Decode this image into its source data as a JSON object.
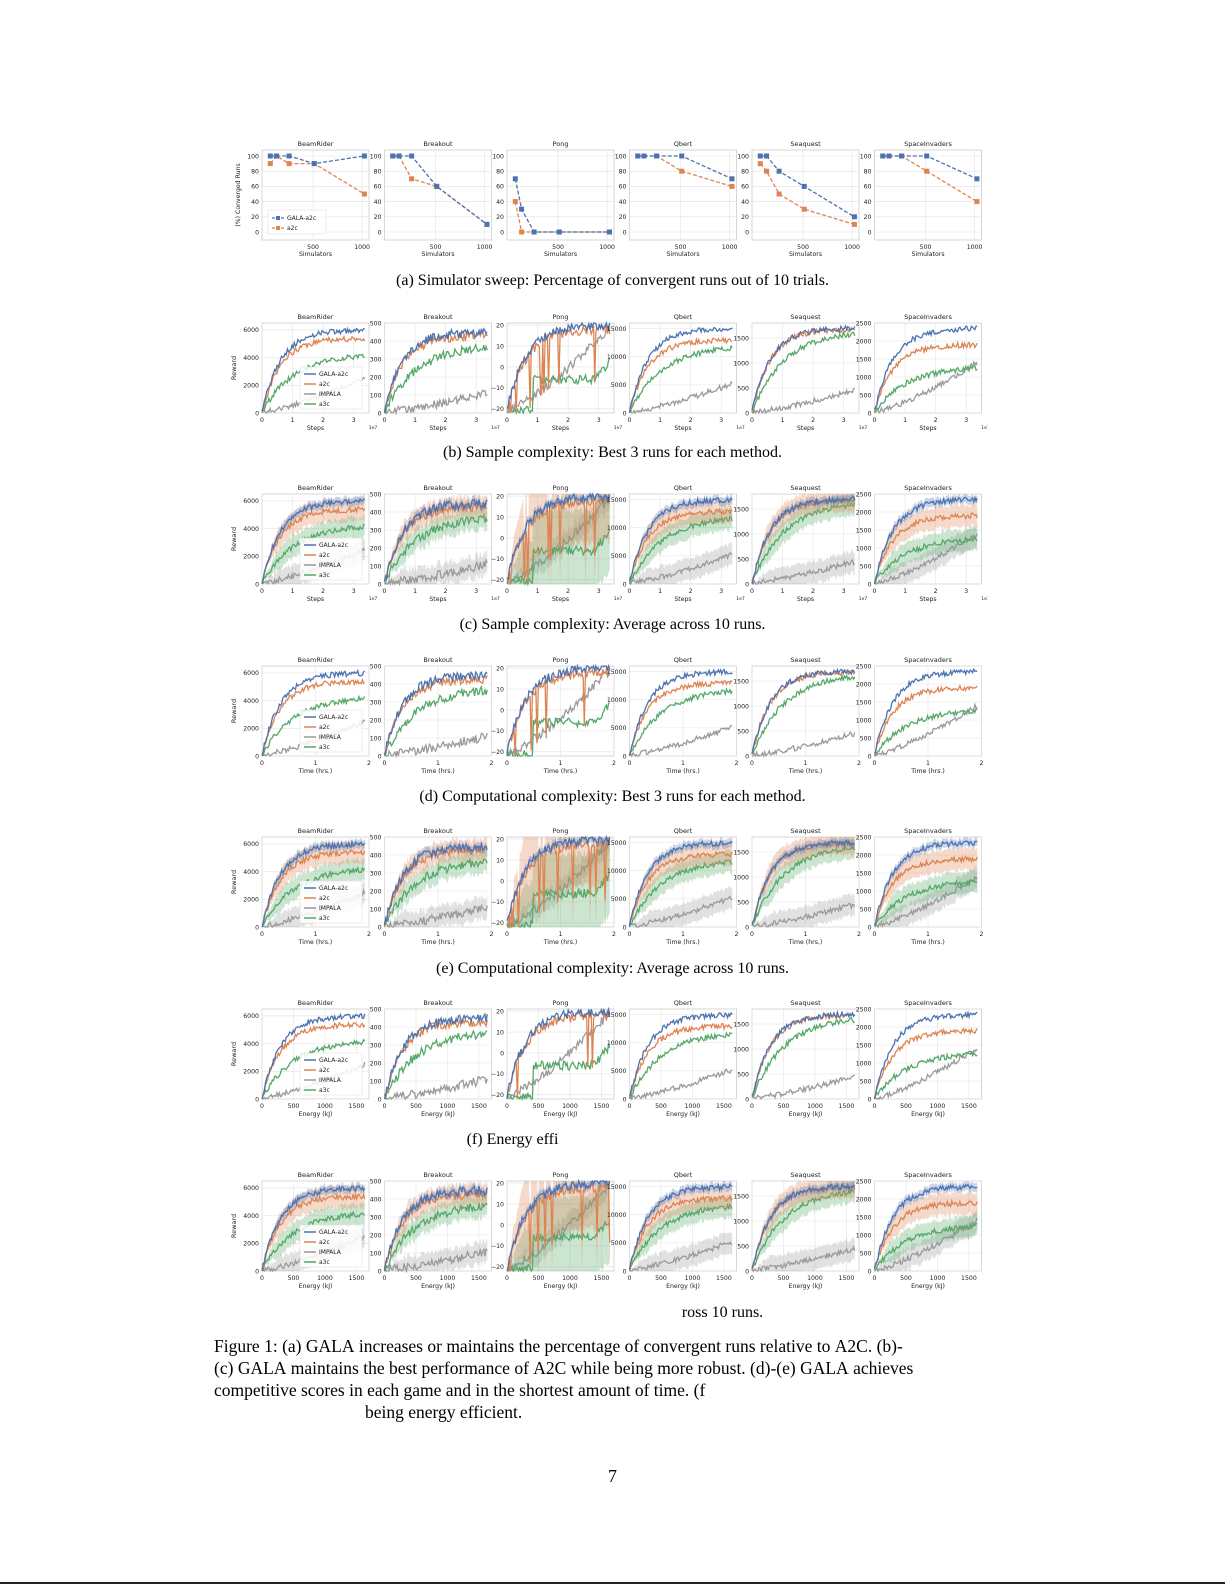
{
  "games": [
    "BeamRider",
    "Breakout",
    "Pong",
    "Qbert",
    "Seaquest",
    "SpaceInvaders"
  ],
  "colors": {
    "gala": "#4c72b0",
    "a2c": "#dd8452",
    "impala": "#9a9a9a",
    "a3c": "#55a868",
    "grid": "#e2e2e2",
    "frame": "#bdbdbd"
  },
  "legend_sweep": [
    "GALA-a2c",
    "a2c"
  ],
  "legend_methods": [
    "GALA-a2c",
    "a2c",
    "IMPALA",
    "a3c"
  ],
  "ylabels": {
    "sweep": "(%) Converged Runs",
    "reward": "Reward"
  },
  "xlabels": {
    "sweep": "Simulators",
    "steps": "Steps",
    "time": "Time (hrs.)",
    "energy": "Energy (kJ)"
  },
  "sci_note": "1e7",
  "chart_data": [
    {
      "id": "a",
      "type": "line",
      "x_key": "sweep",
      "caption": "(a) Simulator sweep: Percentage of convergent runs out of 10 trials.",
      "x": [
        64,
        128,
        256,
        512,
        1024
      ],
      "series": {
        "BeamRider": {
          "GALA-a2c": [
            100,
            100,
            100,
            90,
            100
          ],
          "a2c": [
            90,
            100,
            90,
            90,
            50
          ]
        },
        "Breakout": {
          "GALA-a2c": [
            100,
            100,
            100,
            60,
            10
          ],
          "a2c": [
            100,
            100,
            70,
            60,
            10
          ]
        },
        "Pong": {
          "GALA-a2c": [
            70,
            30,
            0,
            0,
            0
          ],
          "a2c": [
            40,
            0,
            0,
            0,
            0
          ]
        },
        "Qbert": {
          "GALA-a2c": [
            100,
            100,
            100,
            100,
            70
          ],
          "a2c": [
            100,
            100,
            100,
            80,
            60
          ]
        },
        "Seaquest": {
          "GALA-a2c": [
            100,
            100,
            80,
            60,
            20
          ],
          "a2c": [
            90,
            80,
            50,
            30,
            10
          ]
        },
        "SpaceInvaders": {
          "GALA-a2c": [
            100,
            100,
            100,
            100,
            70
          ],
          "a2c": [
            100,
            100,
            100,
            80,
            40
          ]
        }
      }
    },
    {
      "id": "b",
      "type": "line",
      "x_key": "steps",
      "bands": false,
      "caption": "(b) Sample complexity: Best 3 runs for each method."
    },
    {
      "id": "c",
      "type": "line",
      "x_key": "steps",
      "bands": true,
      "caption": "(c) Sample complexity: Average across 10 runs."
    },
    {
      "id": "d",
      "type": "line",
      "x_key": "time",
      "bands": false,
      "caption": "(d) Computational complexity: Best 3 runs for each method."
    },
    {
      "id": "e",
      "type": "line",
      "x_key": "time",
      "bands": true,
      "caption": "(e) Computational complexity: Average across 10 runs."
    },
    {
      "id": "f",
      "type": "line",
      "x_key": "energy",
      "bands": false,
      "caption": "(f) Energy effi"
    },
    {
      "id": "g",
      "type": "line",
      "x_key": "energy",
      "bands": true,
      "caption": "ross 10 runs."
    }
  ],
  "axes": {
    "steps": {
      "xmax": 3.5,
      "xticks": [
        "0",
        "1",
        "2",
        "3"
      ],
      "xtickvals": [
        0,
        1,
        2,
        3
      ]
    },
    "time": {
      "xmax": 2,
      "xticks": [
        "0",
        "1",
        "2"
      ],
      "xtickvals": [
        0,
        1,
        2
      ]
    },
    "energy": {
      "xmax": 1700,
      "xticks": [
        "0",
        "500",
        "1000",
        "1500"
      ],
      "xtickvals": [
        0,
        500,
        1000,
        1500
      ]
    },
    "sweep": {
      "xmax": 1050,
      "xticks": [
        "500",
        "1000"
      ],
      "xtickvals": [
        500,
        1000
      ]
    }
  },
  "reward_axes": {
    "BeamRider": {
      "ymin": 0,
      "ymax": 6500,
      "yticks": [
        0,
        2000,
        4000,
        6000
      ]
    },
    "Breakout": {
      "ymin": 0,
      "ymax": 500,
      "yticks": [
        0,
        100,
        200,
        300,
        400,
        500
      ]
    },
    "Pong": {
      "ymin": -22,
      "ymax": 21,
      "yticks": [
        -20,
        -10,
        0,
        10,
        20
      ]
    },
    "Qbert": {
      "ymin": 0,
      "ymax": 16000,
      "yticks": [
        0,
        5000,
        10000,
        15000
      ]
    },
    "Seaquest": {
      "ymin": 0,
      "ymax": 1800,
      "yticks": [
        0,
        500,
        1000,
        1500
      ]
    },
    "SpaceInvaders": {
      "ymin": 0,
      "ymax": 2500,
      "yticks": [
        0,
        500,
        1000,
        1500,
        2000,
        2500
      ]
    }
  },
  "reward_final": {
    "BeamRider": {
      "GALA-a2c": 6000,
      "a2c": 5400,
      "IMPALA": 2500,
      "a3c": 4300
    },
    "Breakout": {
      "GALA-a2c": 450,
      "a2c": 430,
      "IMPALA": 110,
      "a3c": 380
    },
    "Pong": {
      "GALA-a2c": 20,
      "a2c": 18,
      "IMPALA": 19,
      "a3c": -6
    },
    "Qbert": {
      "GALA-a2c": 15000,
      "a2c": 13000,
      "IMPALA": 5200,
      "a3c": 12000
    },
    "Seaquest": {
      "GALA-a2c": 1700,
      "a2c": 1680,
      "IMPALA": 450,
      "a3c": 1650
    },
    "SpaceInvaders": {
      "GALA-a2c": 2350,
      "a2c": 1900,
      "IMPALA": 1400,
      "a3c": 1300
    }
  },
  "figure_caption": {
    "label": "Figure 1:",
    "line1_parts": [
      "(a) ",
      "GALA",
      " increases or maintains the percentage of convergent runs relative to ",
      "A2C",
      ". (b)-"
    ],
    "line2_parts": [
      "(c) ",
      "GALA",
      " maintains the best performance of ",
      "A2C",
      " while being more robust. (d)-(e) ",
      "GALA",
      " achieves"
    ],
    "line3": "competitive scores in each game and in the shortest amount of time. (f",
    "line4": "being energy efficient."
  },
  "page_number": "7"
}
